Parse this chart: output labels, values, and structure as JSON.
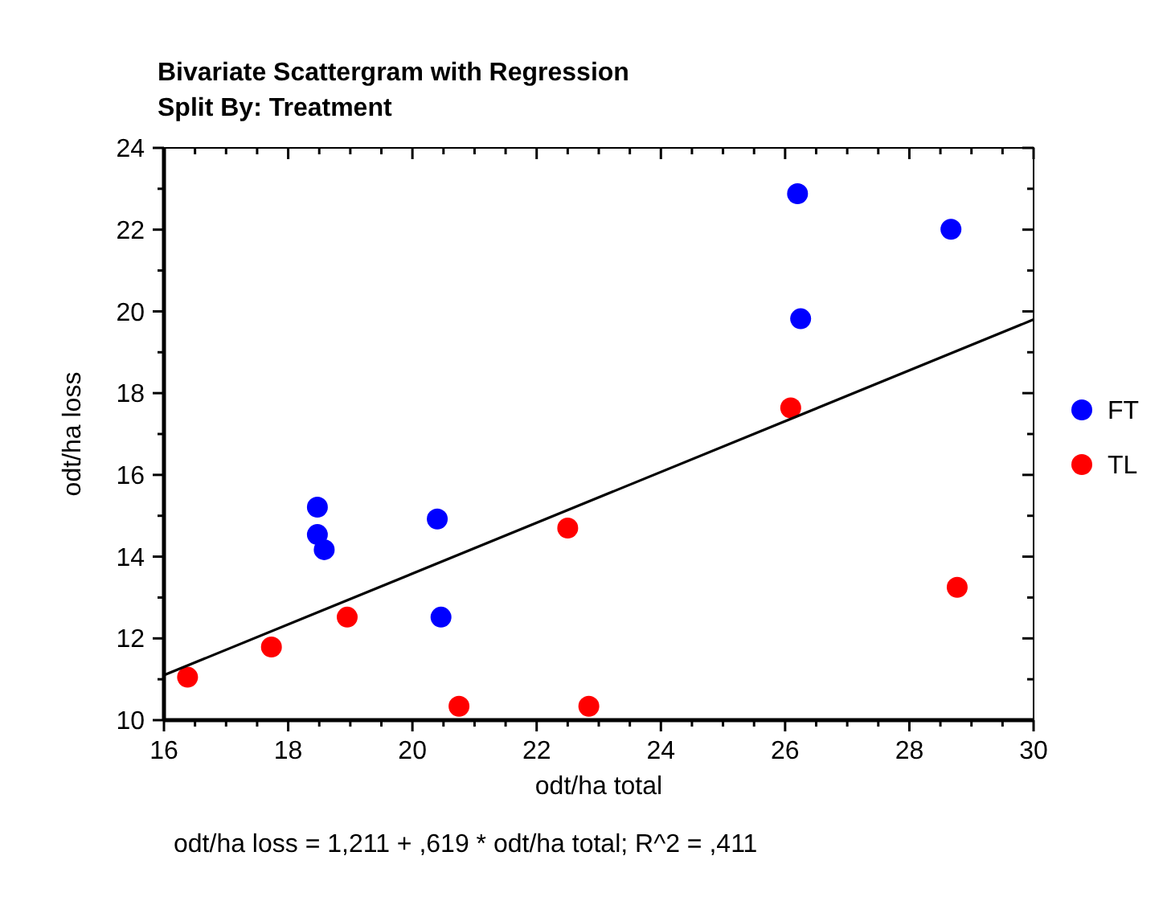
{
  "chart_data": {
    "type": "scatter",
    "title": "Bivariate Scattergram with Regression",
    "subtitle": "Split By: Treatment",
    "xlabel": "odt/ha total",
    "ylabel": "odt/ha loss",
    "annotations": [
      "odt/ha loss = 1,211 + ,619 * odt/ha total; R^2 = ,411"
    ],
    "xlim": [
      16,
      30
    ],
    "ylim": [
      10,
      24
    ],
    "xticks": [
      16,
      {
        "value": 16.5,
        "label": null
      },
      {
        "value": 17,
        "label": null
      },
      {
        "value": 17.5,
        "label": null
      },
      18,
      {
        "value": 18.5,
        "label": null
      },
      {
        "value": 19,
        "label": null
      },
      {
        "value": 19.5,
        "label": null
      },
      20,
      {
        "value": 20.5,
        "label": null
      },
      {
        "value": 21,
        "label": null
      },
      {
        "value": 21.5,
        "label": null
      },
      22,
      {
        "value": 22.5,
        "label": null
      },
      {
        "value": 23,
        "label": null
      },
      {
        "value": 23.5,
        "label": null
      },
      24,
      {
        "value": 24.5,
        "label": null
      },
      {
        "value": 25,
        "label": null
      },
      {
        "value": 25.5,
        "label": null
      },
      26,
      {
        "value": 26.5,
        "label": null
      },
      {
        "value": 27,
        "label": null
      },
      {
        "value": 27.5,
        "label": null
      },
      28,
      {
        "value": 28.5,
        "label": null
      },
      {
        "value": 29,
        "label": null
      },
      {
        "value": 29.5,
        "label": null
      },
      30
    ],
    "yticks": [
      10,
      {
        "value": 11,
        "label": null
      },
      12,
      {
        "value": 13,
        "label": null
      },
      14,
      {
        "value": 15,
        "label": null
      },
      16,
      {
        "value": 17,
        "label": null
      },
      18,
      {
        "value": 19,
        "label": null
      },
      20,
      {
        "value": 21,
        "label": null
      },
      22,
      {
        "value": 23,
        "label": null
      },
      24
    ],
    "grid": false,
    "legend": "right",
    "marker": "circle",
    "series": [
      {
        "name": "FT",
        "color": "#0000ff",
        "x": [
          18.47,
          18.47,
          18.58,
          20.4,
          20.46,
          26.2,
          28.67,
          26.25
        ],
        "values": [
          15.21,
          14.54,
          14.17,
          14.92,
          12.52,
          22.88,
          22.01,
          19.82
        ]
      },
      {
        "name": "TL",
        "color": "#ff0000",
        "x": [
          16.38,
          17.73,
          18.95,
          20.75,
          22.5,
          22.84,
          26.09,
          28.77
        ],
        "values": [
          11.05,
          11.79,
          12.52,
          10.34,
          14.7,
          10.34,
          17.64,
          13.25
        ]
      },
      {
        "type": "line",
        "color": "#000000",
        "marker": "none",
        "x": [
          16,
          30
        ],
        "values": [
          11.1,
          19.8
        ]
      }
    ]
  }
}
